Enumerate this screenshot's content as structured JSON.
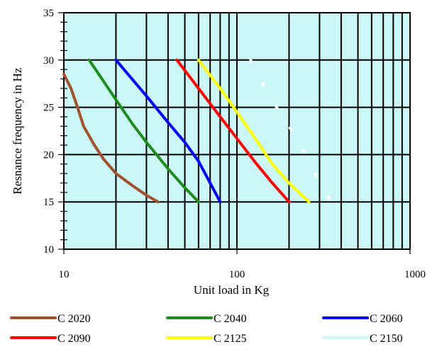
{
  "chart_data": {
    "type": "line",
    "title": "",
    "xlabel": "Unit load in Kg",
    "ylabel": "Resnance frequency in Hz",
    "xscale": "log",
    "xlim": [
      10,
      1000
    ],
    "ylim": [
      10,
      35
    ],
    "xticks": [
      10,
      100,
      1000
    ],
    "xtick_labels": [
      "10",
      "100",
      "1000"
    ],
    "yticks": [
      10,
      15,
      20,
      25,
      30,
      35
    ],
    "ytick_labels": [
      "10",
      "15",
      "20",
      "25",
      "30",
      "35"
    ],
    "grid": true,
    "plot_background": "#ccf7f7",
    "legend_position": "bottom",
    "series": [
      {
        "name": "C 2020",
        "color": "#a0522d",
        "x": [
          10,
          11,
          12,
          13,
          15,
          17,
          20,
          25,
          30,
          35
        ],
        "y": [
          28.5,
          27,
          25,
          23,
          21,
          19.5,
          18,
          16.7,
          15.7,
          15
        ]
      },
      {
        "name": "C 2040",
        "color": "#1e8c1e",
        "x": [
          14,
          20,
          25,
          30,
          40,
          50,
          60
        ],
        "y": [
          30,
          25.8,
          23.2,
          21.3,
          18.5,
          16.5,
          15
        ]
      },
      {
        "name": "C 2060",
        "color": "#0000ff",
        "x": [
          20,
          30,
          40,
          50,
          60,
          70,
          80
        ],
        "y": [
          30,
          26.2,
          23.4,
          21.3,
          19.3,
          17,
          15
        ]
      },
      {
        "name": "C 2090",
        "color": "#ff0000",
        "x": [
          45,
          60,
          80,
          100,
          130,
          160,
          200
        ],
        "y": [
          30,
          27,
          24,
          21.7,
          19,
          17,
          15
        ]
      },
      {
        "name": "C 2125",
        "color": "#ffff00",
        "x": [
          60,
          80,
          100,
          130,
          160,
          200,
          260
        ],
        "y": [
          30,
          27,
          24.5,
          21.5,
          19,
          17,
          15
        ]
      },
      {
        "name": "C 2150",
        "color": "#ffffff",
        "x": [
          120,
          150,
          200,
          250,
          300,
          350
        ],
        "y": [
          30,
          26.5,
          23,
          20,
          17,
          15
        ]
      }
    ]
  }
}
